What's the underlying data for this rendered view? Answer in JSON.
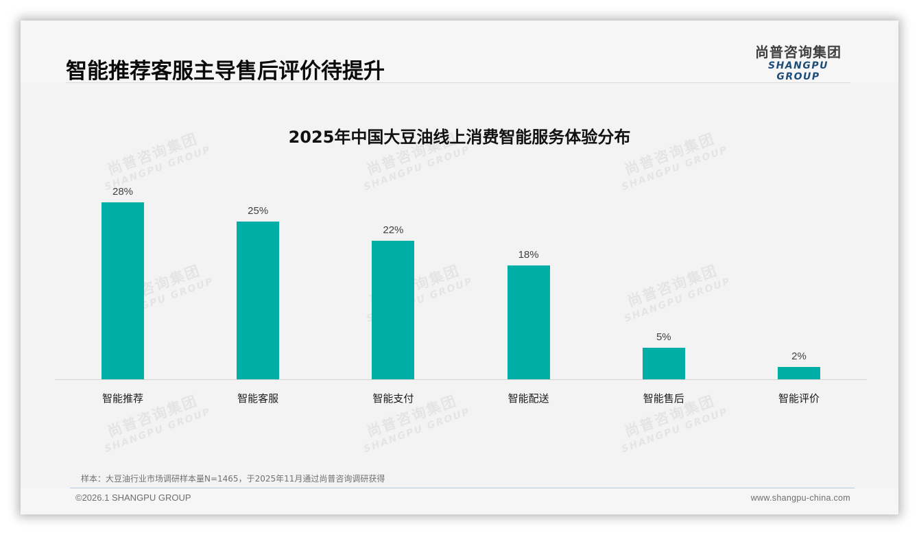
{
  "header": {
    "title": "智能推荐客服主导售后评价待提升",
    "logo_cn": "尚普咨询集团",
    "logo_en": "SHANGPU GROUP"
  },
  "watermark": {
    "cn": "尚普咨询集团",
    "en": "SHANGPU GROUP"
  },
  "chart_data": {
    "type": "bar",
    "title": "2025年中国大豆油线上消费智能服务体验分布",
    "categories": [
      "智能推荐",
      "智能客服",
      "智能支付",
      "智能配送",
      "智能售后",
      "智能评价"
    ],
    "values": [
      28,
      25,
      22,
      18,
      5,
      2
    ],
    "value_labels": [
      "28%",
      "25%",
      "22%",
      "18%",
      "5%",
      "2%"
    ],
    "unit": "%",
    "xlabel": "",
    "ylabel": "",
    "ylim": [
      0,
      30
    ],
    "grid": false,
    "legend": null,
    "bar_color": "#00aea6"
  },
  "footer": {
    "note": "样本：大豆油行业市场调研样本量N=1465，于2025年11月通过尚普咨询调研获得",
    "copyright": "©2026.1 SHANGPU GROUP",
    "website": "www.shangpu-china.com"
  }
}
